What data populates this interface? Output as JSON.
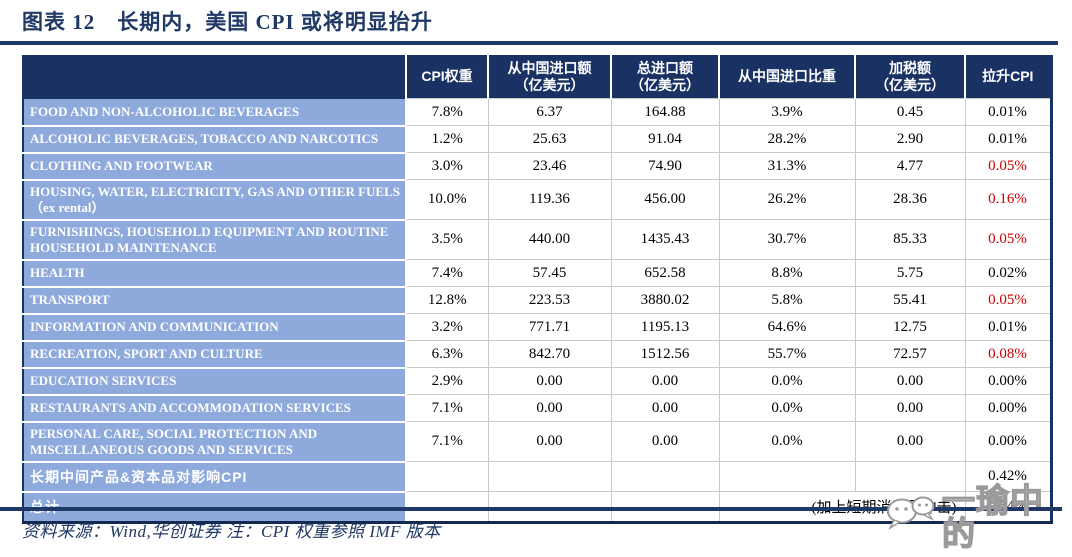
{
  "title": "图表 12　长期内，美国 CPI 或将明显抬升",
  "table": {
    "columns": [
      "",
      "CPI权重",
      "从中国进口额\n（亿美元）",
      "总进口额\n（亿美元）",
      "从中国进口比重",
      "加税额\n（亿美元）",
      "拉升CPI"
    ],
    "rows": [
      {
        "label": "FOOD AND NON-ALCOHOLIC BEVERAGES",
        "values": [
          "7.8%",
          "6.37",
          "164.88",
          "3.9%",
          "0.45",
          "0.01%"
        ],
        "lift_red": false
      },
      {
        "label": "ALCOHOLIC BEVERAGES, TOBACCO AND NARCOTICS",
        "values": [
          "1.2%",
          "25.63",
          "91.04",
          "28.2%",
          "2.90",
          "0.01%"
        ],
        "lift_red": false
      },
      {
        "label": "CLOTHING AND FOOTWEAR",
        "values": [
          "3.0%",
          "23.46",
          "74.90",
          "31.3%",
          "4.77",
          "0.05%"
        ],
        "lift_red": true
      },
      {
        "label": "HOUSING, WATER, ELECTRICITY, GAS AND OTHER FUELS（ex rental）",
        "values": [
          "10.0%",
          "119.36",
          "456.00",
          "26.2%",
          "28.36",
          "0.16%"
        ],
        "lift_red": true
      },
      {
        "label": "FURNISHINGS, HOUSEHOLD EQUIPMENT AND ROUTINE HOUSEHOLD MAINTENANCE",
        "values": [
          "3.5%",
          "440.00",
          "1435.43",
          "30.7%",
          "85.33",
          "0.05%"
        ],
        "lift_red": true
      },
      {
        "label": "HEALTH",
        "values": [
          "7.4%",
          "57.45",
          "652.58",
          "8.8%",
          "5.75",
          "0.02%"
        ],
        "lift_red": false
      },
      {
        "label": "TRANSPORT",
        "values": [
          "12.8%",
          "223.53",
          "3880.02",
          "5.8%",
          "55.41",
          "0.05%"
        ],
        "lift_red": true
      },
      {
        "label": "INFORMATION AND COMMUNICATION",
        "values": [
          "3.2%",
          "771.71",
          "1195.13",
          "64.6%",
          "12.75",
          "0.01%"
        ],
        "lift_red": false
      },
      {
        "label": "RECREATION, SPORT AND CULTURE",
        "values": [
          "6.3%",
          "842.70",
          "1512.56",
          "55.7%",
          "72.57",
          "0.08%"
        ],
        "lift_red": true
      },
      {
        "label": "EDUCATION SERVICES",
        "values": [
          "2.9%",
          "0.00",
          "0.00",
          "0.0%",
          "0.00",
          "0.00%"
        ],
        "lift_red": false
      },
      {
        "label": "RESTAURANTS AND ACCOMMODATION SERVICES",
        "values": [
          "7.1%",
          "0.00",
          "0.00",
          "0.0%",
          "0.00",
          "0.00%"
        ],
        "lift_red": false
      },
      {
        "label": "PERSONAL CARE, SOCIAL PROTECTION AND MISCELLANEOUS GOODS AND SERVICES",
        "values": [
          "7.1%",
          "0.00",
          "0.00",
          "0.0%",
          "0.00",
          "0.00%"
        ],
        "lift_red": false
      }
    ],
    "summary": [
      {
        "label": "长期中间产品&资本品对影响CPI",
        "note": "",
        "value": "0.42%"
      },
      {
        "label": "总计",
        "note": "(加上短期消费品冲击)",
        "value": "0.54%"
      }
    ]
  },
  "footer": {
    "source": "资料来源：Wind,华创证券  注：CPI 权重参照 IMF 版本"
  },
  "watermark": {
    "icon": "wechat-icon",
    "text": "一瑜中的"
  },
  "colors": {
    "header_bg": "#1A3263",
    "row_label_bg": "#8EA9DB",
    "accent_rule": "#1F3864",
    "red_value": "#CC0000",
    "grid_line": "#C9C9C9"
  }
}
